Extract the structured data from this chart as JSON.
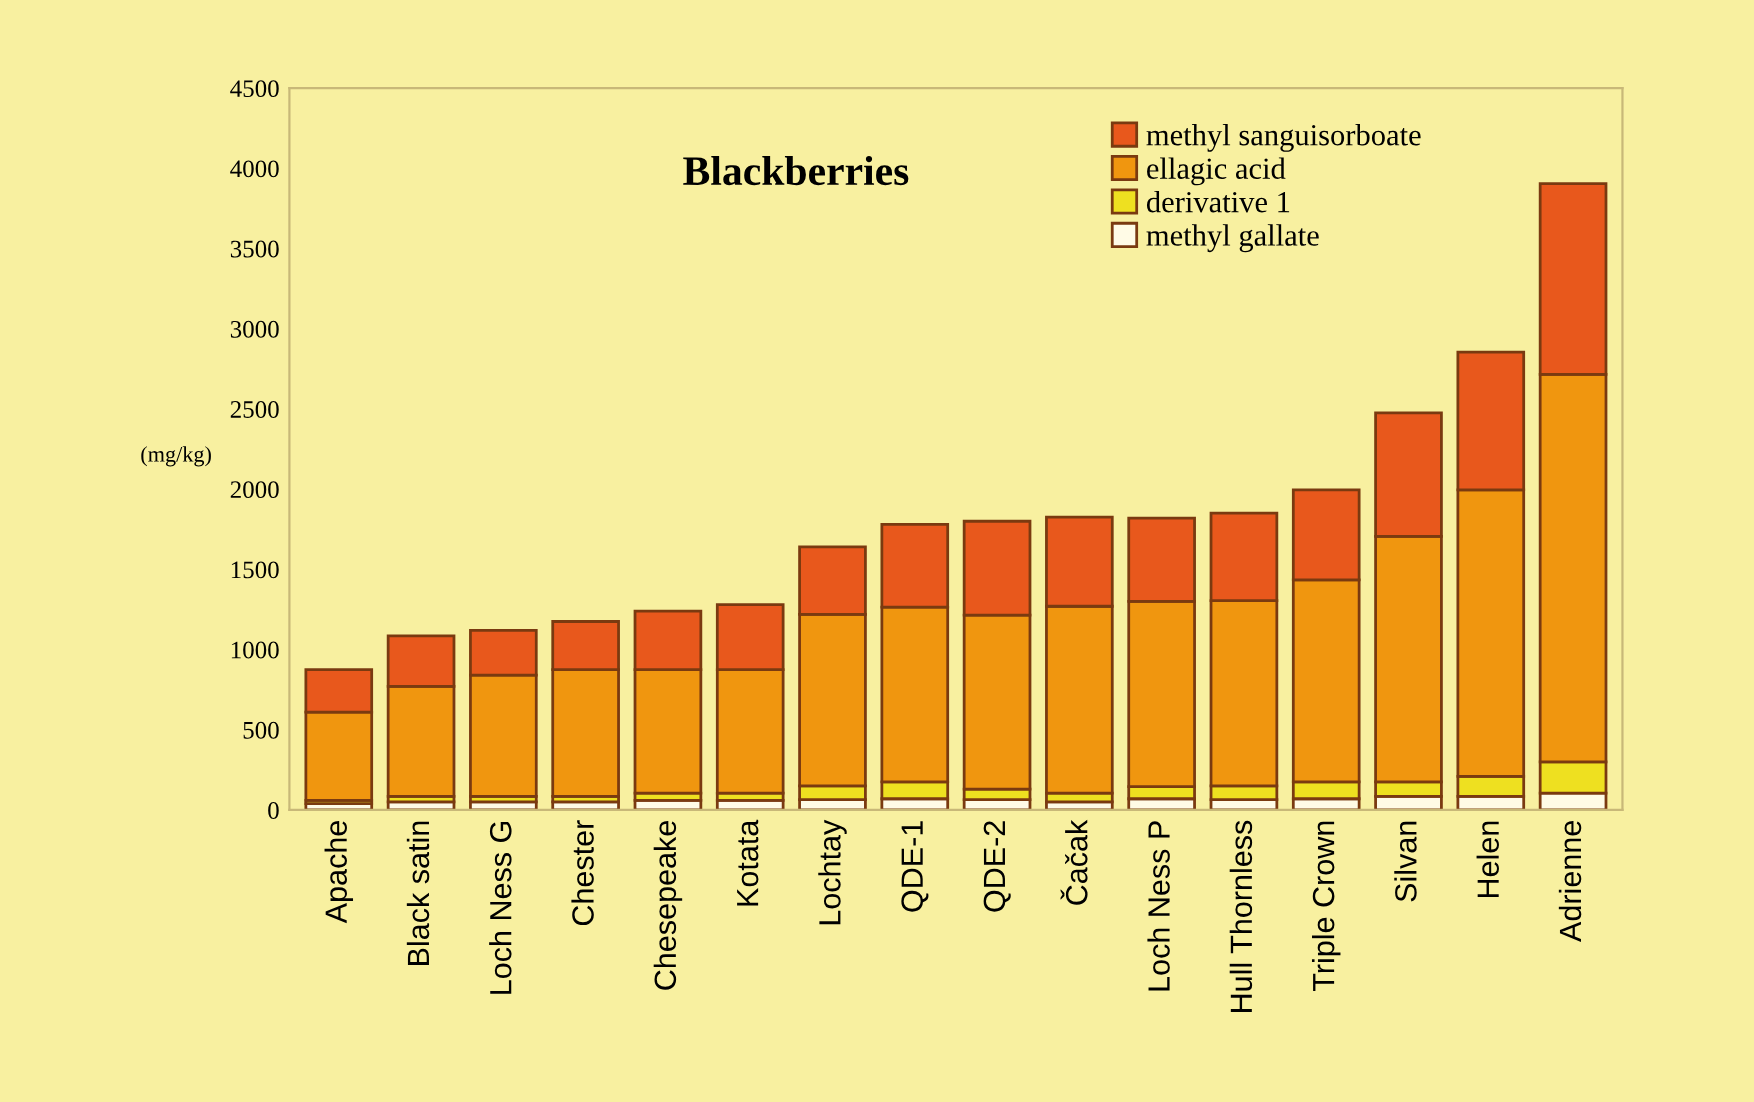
{
  "chart_data": {
    "type": "bar",
    "title": "Blackberries",
    "ylabel": "(mg/kg)",
    "stacked": true,
    "categories": [
      "Apache",
      "Black satin",
      "Loch Ness G",
      "Chester",
      "Chesepeake",
      "Kotata",
      "Lochtay",
      "QDE-1",
      "QDE-2",
      "Čačak",
      "Loch Ness P",
      "Hull Thornless",
      "Triple Crown",
      "Silvan",
      "Helen",
      "Adrienne"
    ],
    "series": [
      {
        "name": "methyl gallate",
        "color": "#fffbe6",
        "values": [
          40,
          50,
          50,
          50,
          60,
          60,
          65,
          70,
          65,
          50,
          70,
          65,
          70,
          85,
          85,
          105
        ]
      },
      {
        "name": "derivative 1",
        "color": "#eee020",
        "values": [
          20,
          35,
          35,
          35,
          45,
          45,
          85,
          105,
          65,
          55,
          75,
          85,
          105,
          90,
          125,
          195
        ]
      },
      {
        "name": "ellagic acid",
        "color": "#f0960f",
        "values": [
          550,
          685,
          755,
          790,
          770,
          770,
          1070,
          1090,
          1085,
          1165,
          1155,
          1155,
          1260,
          1530,
          1785,
          2415
        ]
      },
      {
        "name": "methyl sanguisorboate",
        "color": "#e8581c",
        "values": [
          265,
          315,
          280,
          300,
          365,
          405,
          420,
          515,
          585,
          555,
          520,
          545,
          560,
          770,
          860,
          1190
        ]
      }
    ],
    "ylim": [
      0,
      4500
    ],
    "yticks": [
      0,
      500,
      1000,
      1500,
      2000,
      2500,
      3000,
      3500,
      4000,
      4500
    ],
    "grid": false,
    "legend": "top right"
  }
}
